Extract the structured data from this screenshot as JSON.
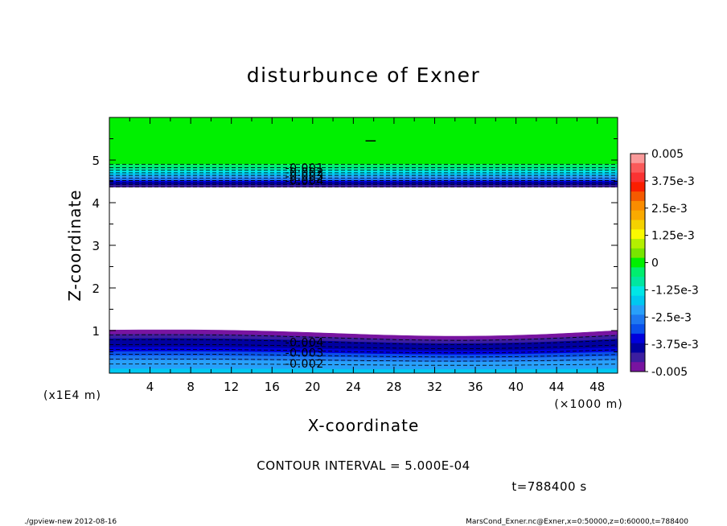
{
  "chart_data": {
    "type": "contour",
    "title": "disturbunce of Exner",
    "xlabel": "X-coordinate",
    "ylabel": "Z-coordinate",
    "x_unit": "(×1000 m)",
    "y_unit": "(x1E4 m)",
    "xlim": [
      0,
      50
    ],
    "ylim": [
      0,
      6
    ],
    "x_ticks": [
      4,
      8,
      12,
      16,
      20,
      24,
      28,
      32,
      36,
      40,
      44,
      48
    ],
    "y_ticks": [
      1,
      2,
      3,
      4,
      5
    ],
    "contour_interval_text": "CONTOUR INTERVAL = 5.000E-04",
    "time_text": "t=788400 s",
    "contour_labels": [
      "-0.001",
      "-0.002",
      "-0.003",
      "-0.004",
      "-0.004",
      "-0.003",
      "-0.002"
    ],
    "colorbar": {
      "min": -0.005,
      "max": 0.005,
      "tick_labels": [
        "0.005",
        "3.75e-3",
        "2.5e-3",
        "1.25e-3",
        "0",
        "-1.25e-3",
        "-2.5e-3",
        "-3.75e-3",
        "-0.005"
      ],
      "colors": [
        "#fa9a9a",
        "#fa5a5a",
        "#fa3232",
        "#fa1e00",
        "#f55a00",
        "#fa8c00",
        "#faaa00",
        "#f5d200",
        "#fafa00",
        "#b4f000",
        "#78e600",
        "#00f000",
        "#00ee6e",
        "#00e6a0",
        "#00e6e6",
        "#00c8f0",
        "#28a0fa",
        "#1e78f0",
        "#0a50eb",
        "#0000dc",
        "#0000a0",
        "#3c1ea0",
        "#7814a0"
      ]
    },
    "fields": {
      "upper_layer_z_range": [
        4.35,
        6.0
      ],
      "upper_layer_value": "0 to -0.005 (decreasing downward)",
      "lower_layer_z_range": [
        0.0,
        1.05
      ],
      "lower_layer_value": "-0.005 near z≈1 to ~-0.0015 near z=0"
    }
  },
  "footer": {
    "left": "./gpview-new   2012-08-16",
    "right": "MarsCond_Exner.nc@Exner,x=0:50000,z=0:60000,t=788400"
  }
}
